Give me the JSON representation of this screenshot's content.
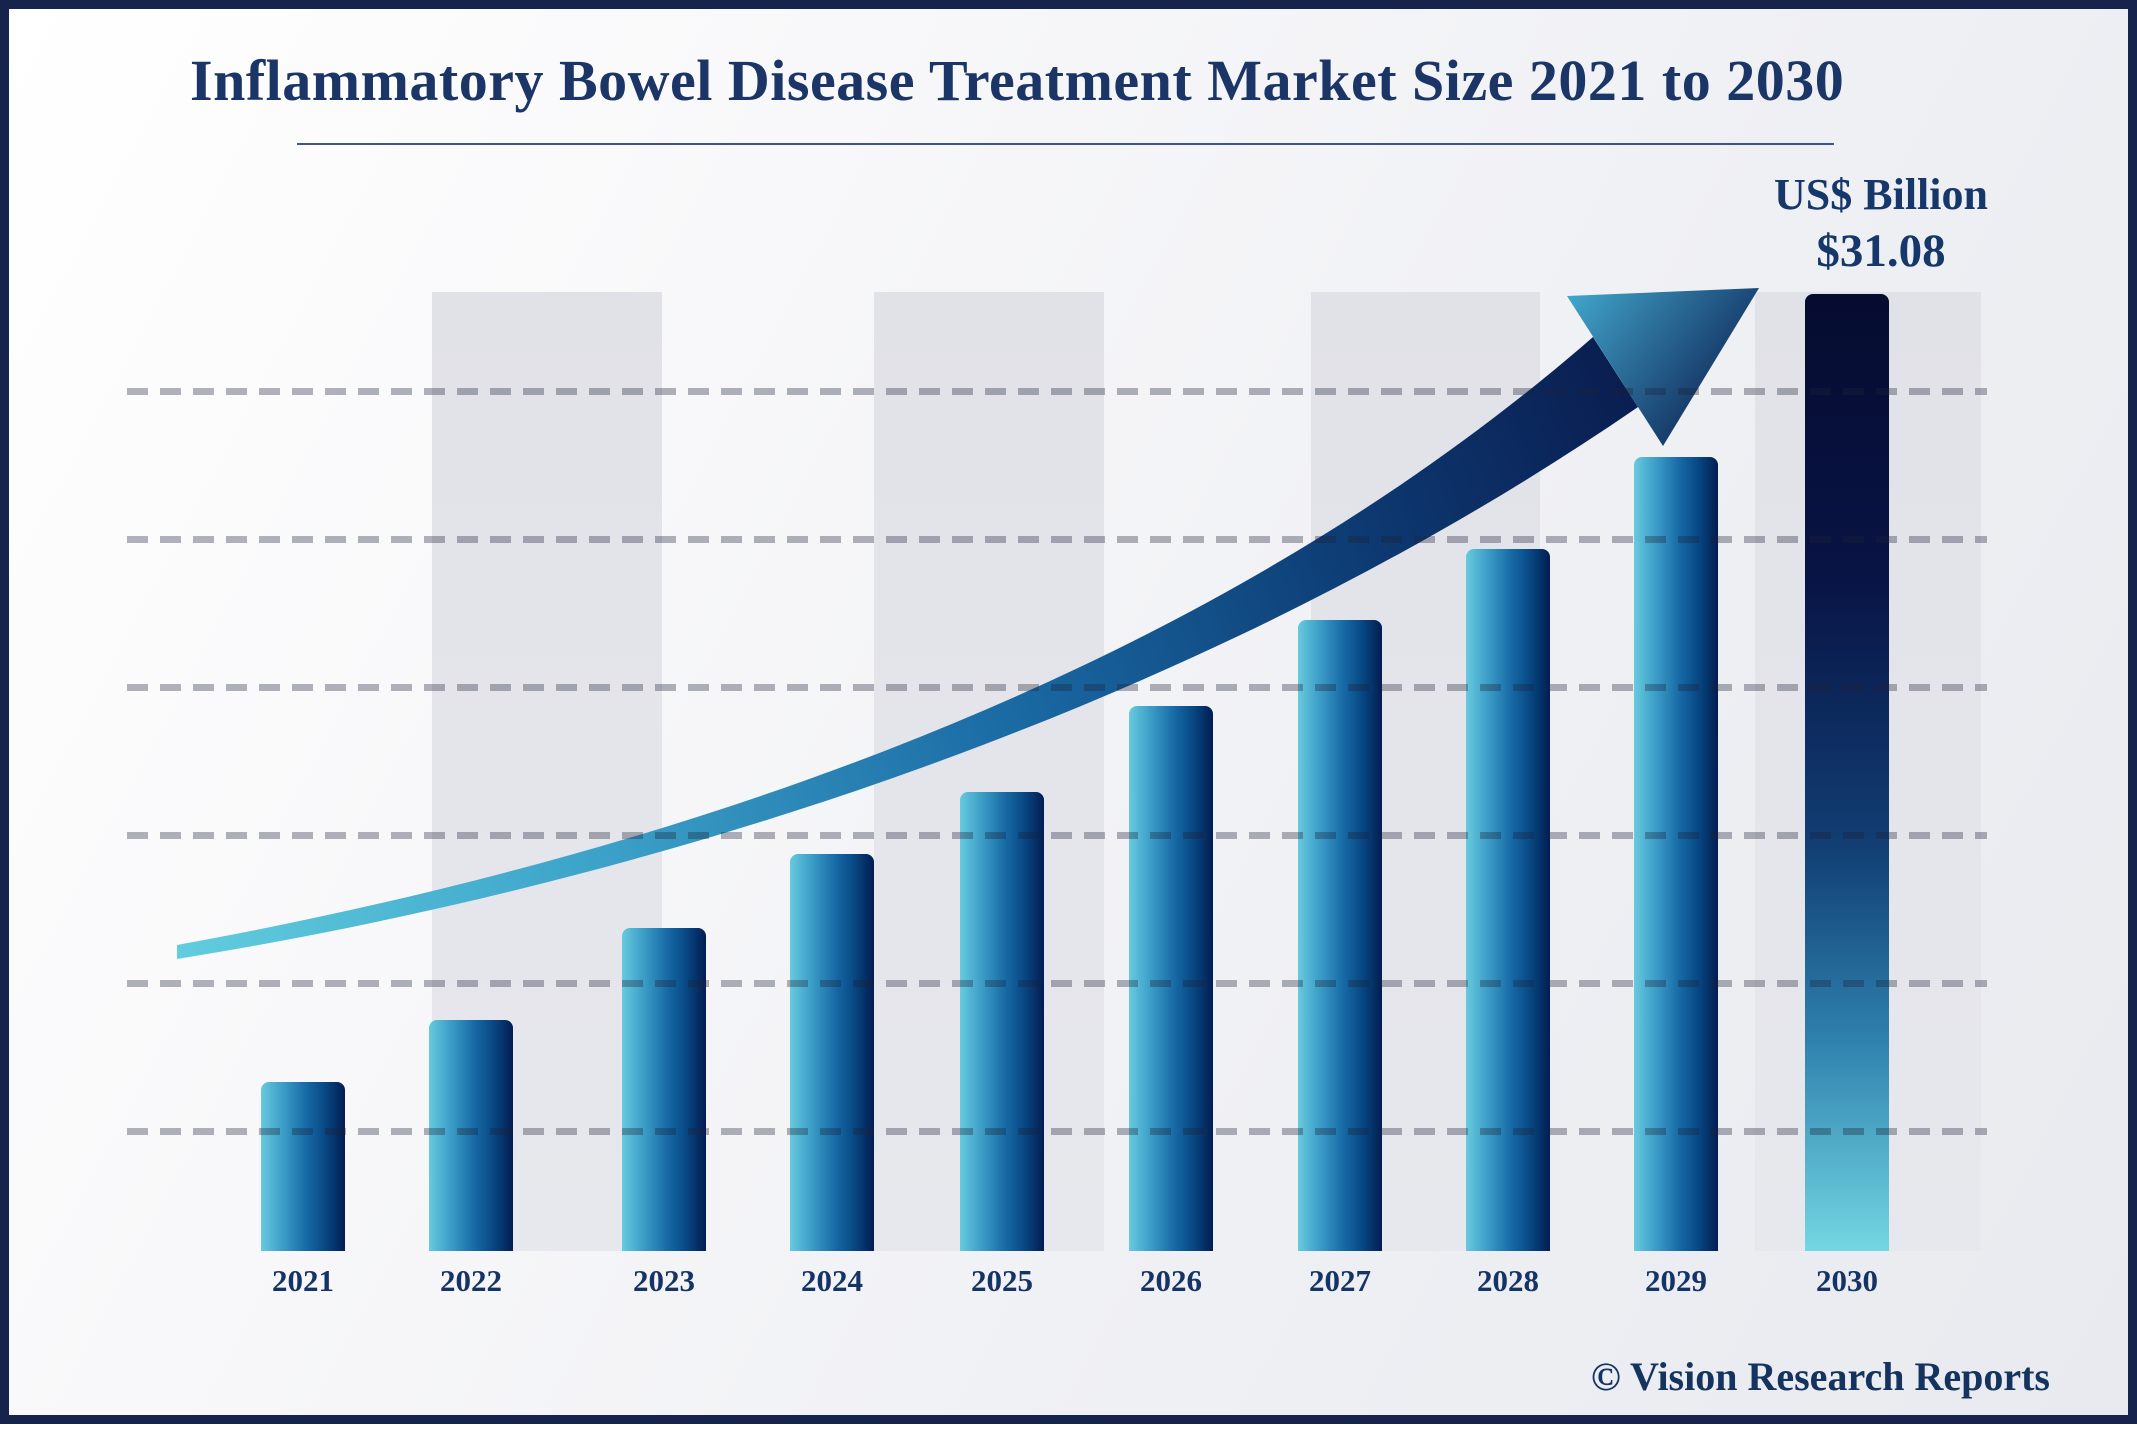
{
  "title": "Inflammatory Bowel Disease Treatment Market Size 2021 to 2030",
  "unit": {
    "label": "US$ Billion",
    "value": "$31.08"
  },
  "credit": "© Vision Research Reports",
  "chart_data": {
    "type": "bar",
    "title": "Inflammatory Bowel Disease Treatment Market Size 2021 to 2030",
    "categories": [
      "2021",
      "2022",
      "2023",
      "2024",
      "2025",
      "2026",
      "2027",
      "2028",
      "2029",
      "2030"
    ],
    "values": [
      5.5,
      7.5,
      10.5,
      12.9,
      14.9,
      17.7,
      20.5,
      22.8,
      25.8,
      31.08
    ],
    "labeled_points": {
      "2030": "US$ Billion $31.08"
    },
    "xlabel": "",
    "ylabel": "US$ Billion",
    "ylim": [
      0,
      31.08
    ],
    "y_axis_ticks": "none (unlabeled)",
    "gridlines": "6 horizontal dashed gray lines, unlabeled, drawn over bars",
    "legend": "none",
    "annotations": [
      "upward curved swoosh arrow from 2021 toward 2030 peak"
    ],
    "note": "only the 2030 bar is labeled ($31.08); other values estimated from bar heights"
  },
  "colors": {
    "frame_border": "#16244d",
    "text_navy": "#1b3566",
    "bar_gradient_left": "#68cade",
    "bar_gradient_right": "#031d52",
    "final_bar_top": "#060c30",
    "final_bar_bottom": "#74d7e2",
    "arrow_tail_start": "#62cdde",
    "arrow_tail_end": "#0a1d50",
    "background_band": "#e3e4e9",
    "gridline": "#a9abb6"
  }
}
